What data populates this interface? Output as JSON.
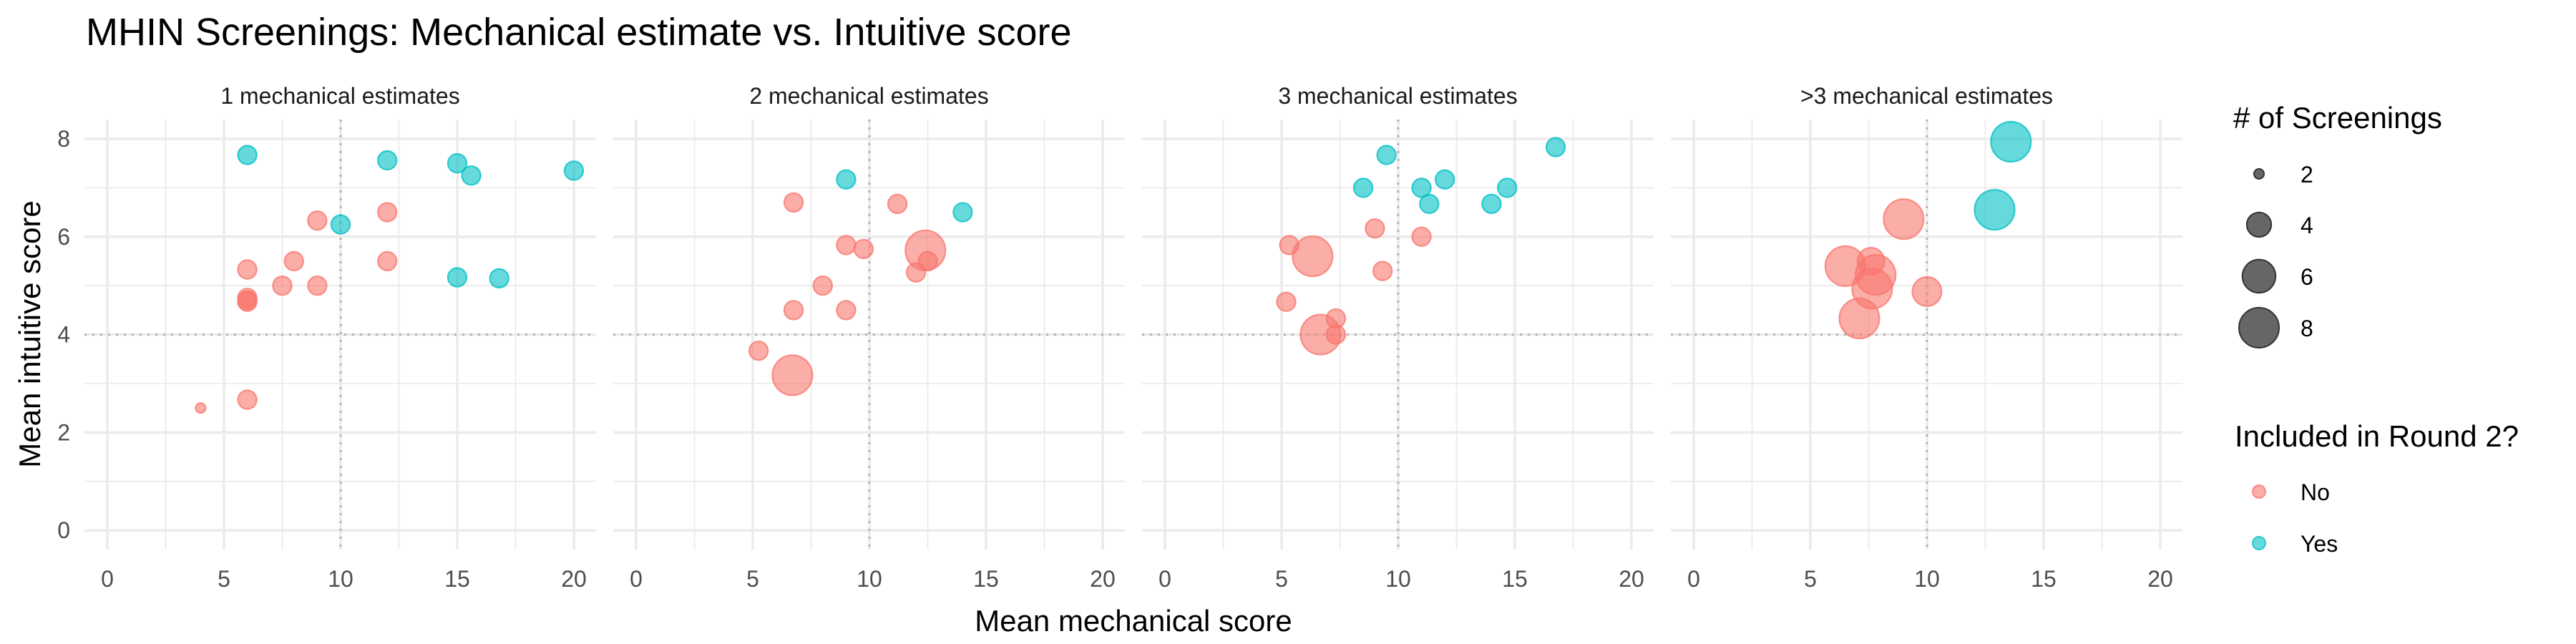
{
  "chart_data": {
    "type": "scatter",
    "title": "MHIN Screenings: Mechanical estimate vs. Intuitive score",
    "xlabel": "Mean mechanical score",
    "ylabel": "Mean intuitive score",
    "xlim": [
      -1,
      21
    ],
    "ylim": [
      -0.4,
      8.4
    ],
    "xticks": [
      "0",
      "5",
      "10",
      "15",
      "20"
    ],
    "yticks": [
      "0",
      "2",
      "4",
      "6",
      "8"
    ],
    "xtick_values": [
      0,
      5,
      10,
      15,
      20
    ],
    "ytick_values": [
      0,
      2,
      4,
      6,
      8
    ],
    "reference_lines": {
      "x": 10,
      "y": 4
    },
    "grid": true,
    "colors": {
      "No": "#F8766D",
      "Yes": "#00BFC4"
    },
    "size_legend": {
      "title": "# of Screenings",
      "values": [
        2,
        4,
        6,
        8
      ],
      "labels": [
        "2",
        "4",
        "6",
        "8"
      ]
    },
    "color_legend": {
      "title": "Included in Round 2?",
      "labels": [
        "No",
        "Yes"
      ]
    },
    "legend_position": "right",
    "panels": [
      {
        "label": "1 mechanical estimates",
        "points": [
          {
            "x": 6.0,
            "y": 7.67,
            "size": 3,
            "included": "Yes"
          },
          {
            "x": 12.0,
            "y": 7.56,
            "size": 3,
            "included": "Yes"
          },
          {
            "x": 15.0,
            "y": 7.5,
            "size": 3,
            "included": "Yes"
          },
          {
            "x": 15.6,
            "y": 7.25,
            "size": 3,
            "included": "Yes"
          },
          {
            "x": 20.0,
            "y": 7.35,
            "size": 3,
            "included": "Yes"
          },
          {
            "x": 10.0,
            "y": 6.25,
            "size": 3,
            "included": "Yes"
          },
          {
            "x": 15.0,
            "y": 5.17,
            "size": 3,
            "included": "Yes"
          },
          {
            "x": 16.8,
            "y": 5.15,
            "size": 3,
            "included": "Yes"
          },
          {
            "x": 9.0,
            "y": 6.33,
            "size": 3,
            "included": "No"
          },
          {
            "x": 12.0,
            "y": 6.5,
            "size": 3,
            "included": "No"
          },
          {
            "x": 8.0,
            "y": 5.5,
            "size": 3,
            "included": "No"
          },
          {
            "x": 12.0,
            "y": 5.5,
            "size": 3,
            "included": "No"
          },
          {
            "x": 6.0,
            "y": 5.33,
            "size": 3,
            "included": "No"
          },
          {
            "x": 7.5,
            "y": 5.0,
            "size": 3,
            "included": "No"
          },
          {
            "x": 9.0,
            "y": 5.0,
            "size": 3,
            "included": "No"
          },
          {
            "x": 6.0,
            "y": 4.75,
            "size": 3,
            "included": "No"
          },
          {
            "x": 6.0,
            "y": 4.7,
            "size": 3,
            "included": "No"
          },
          {
            "x": 6.0,
            "y": 4.67,
            "size": 3,
            "included": "No"
          },
          {
            "x": 6.0,
            "y": 2.67,
            "size": 3,
            "included": "No"
          },
          {
            "x": 4.0,
            "y": 2.5,
            "size": 2,
            "included": "No"
          }
        ]
      },
      {
        "label": "2 mechanical estimates",
        "points": [
          {
            "x": 9.0,
            "y": 7.17,
            "size": 3,
            "included": "Yes"
          },
          {
            "x": 14.0,
            "y": 6.5,
            "size": 3,
            "included": "Yes"
          },
          {
            "x": 6.75,
            "y": 6.7,
            "size": 3,
            "included": "No"
          },
          {
            "x": 11.2,
            "y": 6.67,
            "size": 3,
            "included": "No"
          },
          {
            "x": 9.0,
            "y": 5.83,
            "size": 3,
            "included": "No"
          },
          {
            "x": 9.75,
            "y": 5.75,
            "size": 3,
            "included": "No"
          },
          {
            "x": 12.4,
            "y": 5.72,
            "size": 8,
            "included": "No"
          },
          {
            "x": 12.5,
            "y": 5.5,
            "size": 3,
            "included": "No"
          },
          {
            "x": 12.0,
            "y": 5.27,
            "size": 3,
            "included": "No"
          },
          {
            "x": 8.0,
            "y": 5.0,
            "size": 3,
            "included": "No"
          },
          {
            "x": 6.75,
            "y": 4.5,
            "size": 3,
            "included": "No"
          },
          {
            "x": 9.0,
            "y": 4.5,
            "size": 3,
            "included": "No"
          },
          {
            "x": 5.25,
            "y": 3.67,
            "size": 3,
            "included": "No"
          },
          {
            "x": 6.7,
            "y": 3.17,
            "size": 8,
            "included": "No"
          }
        ]
      },
      {
        "label": "3 mechanical estimates",
        "points": [
          {
            "x": 16.75,
            "y": 7.83,
            "size": 3,
            "included": "Yes"
          },
          {
            "x": 9.5,
            "y": 7.67,
            "size": 3,
            "included": "Yes"
          },
          {
            "x": 8.5,
            "y": 7.0,
            "size": 3,
            "included": "Yes"
          },
          {
            "x": 11.0,
            "y": 7.0,
            "size": 3,
            "included": "Yes"
          },
          {
            "x": 12.0,
            "y": 7.17,
            "size": 3,
            "included": "Yes"
          },
          {
            "x": 11.33,
            "y": 6.67,
            "size": 3,
            "included": "Yes"
          },
          {
            "x": 14.67,
            "y": 7.0,
            "size": 3,
            "included": "Yes"
          },
          {
            "x": 14.0,
            "y": 6.67,
            "size": 3,
            "included": "Yes"
          },
          {
            "x": 9.0,
            "y": 6.17,
            "size": 3,
            "included": "No"
          },
          {
            "x": 11.0,
            "y": 6.0,
            "size": 3,
            "included": "No"
          },
          {
            "x": 5.33,
            "y": 5.83,
            "size": 3,
            "included": "No"
          },
          {
            "x": 6.33,
            "y": 5.6,
            "size": 8,
            "included": "No"
          },
          {
            "x": 9.33,
            "y": 5.3,
            "size": 3,
            "included": "No"
          },
          {
            "x": 5.2,
            "y": 4.67,
            "size": 3,
            "included": "No"
          },
          {
            "x": 7.33,
            "y": 4.33,
            "size": 3,
            "included": "No"
          },
          {
            "x": 6.67,
            "y": 4.0,
            "size": 8,
            "included": "No"
          },
          {
            "x": 7.33,
            "y": 4.0,
            "size": 3,
            "included": "No"
          }
        ]
      },
      {
        "label": ">3 mechanical estimates",
        "points": [
          {
            "x": 13.6,
            "y": 7.94,
            "size": 8,
            "included": "Yes"
          },
          {
            "x": 12.9,
            "y": 6.55,
            "size": 8,
            "included": "Yes"
          },
          {
            "x": 9.0,
            "y": 6.36,
            "size": 8,
            "included": "No"
          },
          {
            "x": 6.5,
            "y": 5.4,
            "size": 8,
            "included": "No"
          },
          {
            "x": 7.6,
            "y": 5.5,
            "size": 4.5,
            "included": "No"
          },
          {
            "x": 7.8,
            "y": 5.22,
            "size": 8,
            "included": "No"
          },
          {
            "x": 7.65,
            "y": 4.94,
            "size": 8,
            "included": "No"
          },
          {
            "x": 10.0,
            "y": 4.88,
            "size": 5,
            "included": "No"
          },
          {
            "x": 7.1,
            "y": 4.33,
            "size": 8,
            "included": "No"
          }
        ]
      }
    ]
  }
}
